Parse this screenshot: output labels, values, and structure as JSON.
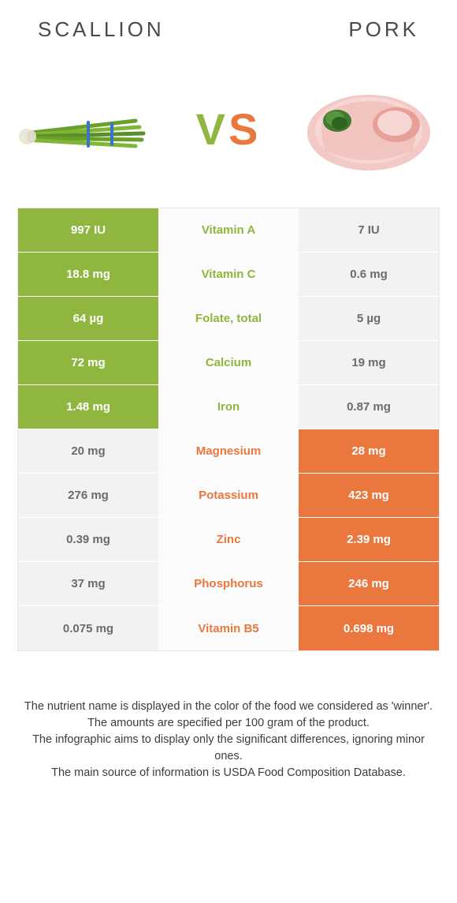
{
  "colors": {
    "green": "#8fb63f",
    "orange": "#e9773e",
    "green_cell_bg": "#8fb63f",
    "orange_cell_bg": "#e9773e",
    "neutral_cell_bg": "#f2f2f0",
    "neutral_text": "#6b6b6b",
    "mid_bg": "#fbfbfb"
  },
  "header": {
    "left": "SCALLION",
    "right": "PORK",
    "vs_v": "V",
    "vs_s": "S"
  },
  "table": {
    "rows": [
      {
        "left": "997 IU",
        "name": "Vitamin A",
        "right": "7 IU",
        "winner": "left"
      },
      {
        "left": "18.8 mg",
        "name": "Vitamin C",
        "right": "0.6 mg",
        "winner": "left"
      },
      {
        "left": "64 µg",
        "name": "Folate, total",
        "right": "5 µg",
        "winner": "left"
      },
      {
        "left": "72 mg",
        "name": "Calcium",
        "right": "19 mg",
        "winner": "left"
      },
      {
        "left": "1.48 mg",
        "name": "Iron",
        "right": "0.87 mg",
        "winner": "left"
      },
      {
        "left": "20 mg",
        "name": "Magnesium",
        "right": "28 mg",
        "winner": "right"
      },
      {
        "left": "276 mg",
        "name": "Potassium",
        "right": "423 mg",
        "winner": "right"
      },
      {
        "left": "0.39 mg",
        "name": "Zinc",
        "right": "2.39 mg",
        "winner": "right"
      },
      {
        "left": "37 mg",
        "name": "Phosphorus",
        "right": "246 mg",
        "winner": "right"
      },
      {
        "left": "0.075 mg",
        "name": "Vitamin B5",
        "right": "0.698 mg",
        "winner": "right"
      }
    ]
  },
  "footer": {
    "line1": "The nutrient name is displayed in the color of the food we considered as 'winner'.",
    "line2": "The amounts are specified per 100 gram of the product.",
    "line3": "The infographic aims to display only the significant differences, ignoring minor ones.",
    "line4": "The main source of information is USDA Food Composition Database."
  }
}
